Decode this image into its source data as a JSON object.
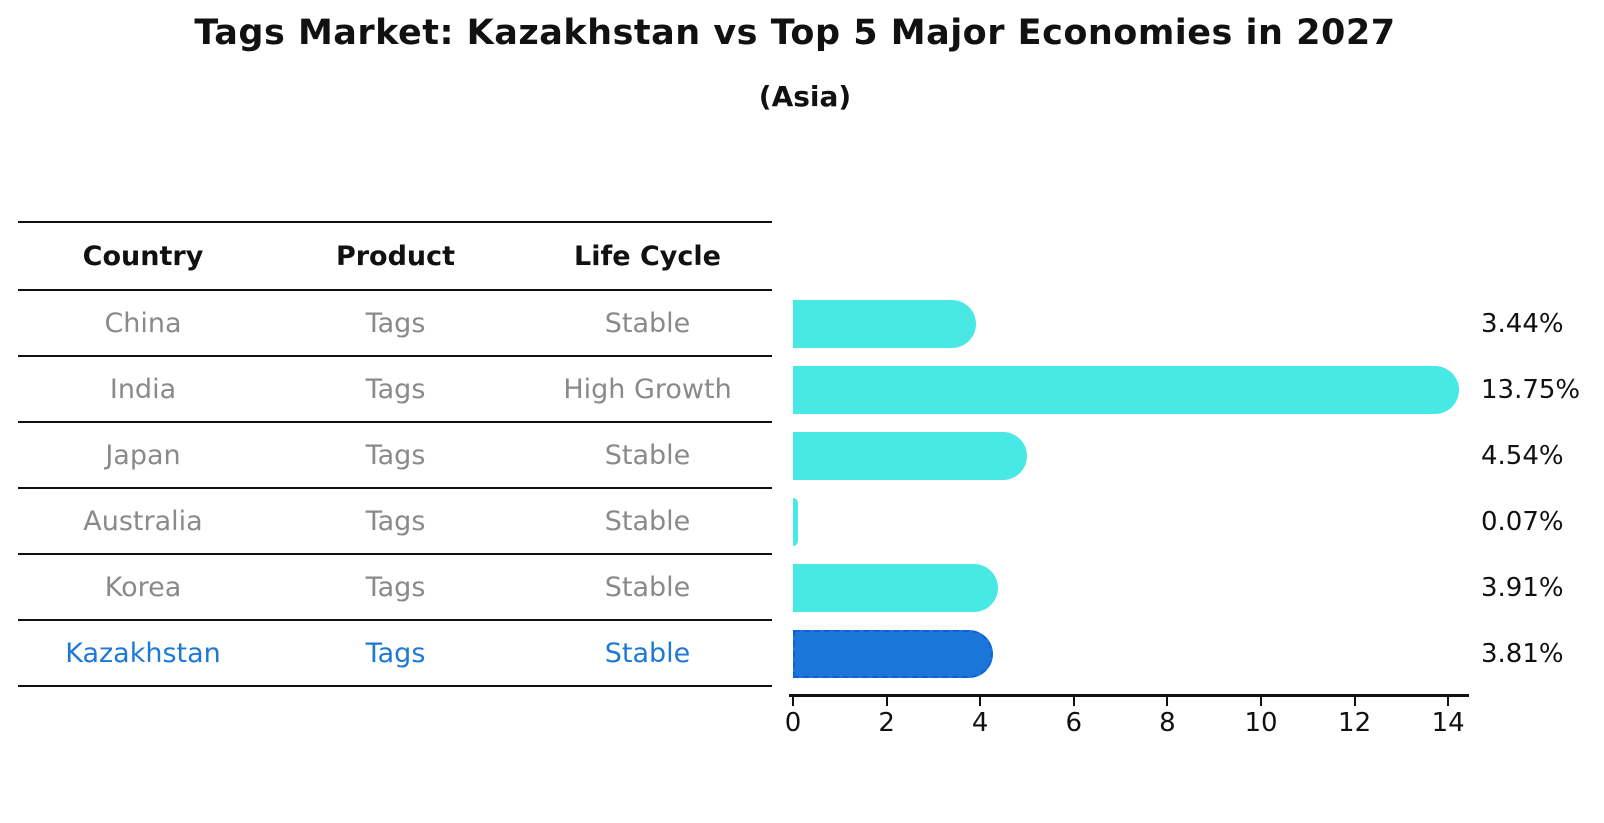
{
  "title": "Tags Market: Kazakhstan vs Top 5 Major Economies in 2027",
  "subtitle": "(Asia)",
  "table": {
    "headers": [
      "Country",
      "Product",
      "Life Cycle"
    ],
    "rows": [
      {
        "country": "China",
        "product": "Tags",
        "life_cycle": "Stable",
        "highlight": false
      },
      {
        "country": "India",
        "product": "Tags",
        "life_cycle": "High Growth",
        "highlight": false
      },
      {
        "country": "Japan",
        "product": "Tags",
        "life_cycle": "Stable",
        "highlight": false
      },
      {
        "country": "Australia",
        "product": "Tags",
        "life_cycle": "Stable",
        "highlight": false
      },
      {
        "country": "Korea",
        "product": "Tags",
        "life_cycle": "Stable",
        "highlight": false
      },
      {
        "country": "Kazakhstan",
        "product": "Tags",
        "life_cycle": "Stable",
        "highlight": true
      }
    ]
  },
  "chart_data": {
    "type": "bar",
    "orientation": "horizontal",
    "title": "Tags Market: Kazakhstan vs Top 5 Major Economies in 2027",
    "subtitle": "(Asia)",
    "categories": [
      "China",
      "India",
      "Japan",
      "Australia",
      "Korea",
      "Kazakhstan"
    ],
    "values": [
      3.44,
      13.75,
      4.54,
      0.07,
      3.91,
      3.81
    ],
    "value_labels": [
      "3.44%",
      "13.75%",
      "4.54%",
      "0.07%",
      "3.91%",
      "3.81%"
    ],
    "highlight_index": 5,
    "xlabel": "",
    "ylabel": "",
    "xlim": [
      0,
      14.5
    ],
    "xticks": [
      0,
      2,
      4,
      6,
      8,
      10,
      12,
      14
    ],
    "grid": false,
    "legend": "none",
    "bar_color": "#48e8e4",
    "highlight_bar_color": "#1c75d8",
    "highlight_border_color": "#0b62d6",
    "highlight_text_color": "#1e79d6",
    "row_text_color": "#8a8a8a"
  }
}
